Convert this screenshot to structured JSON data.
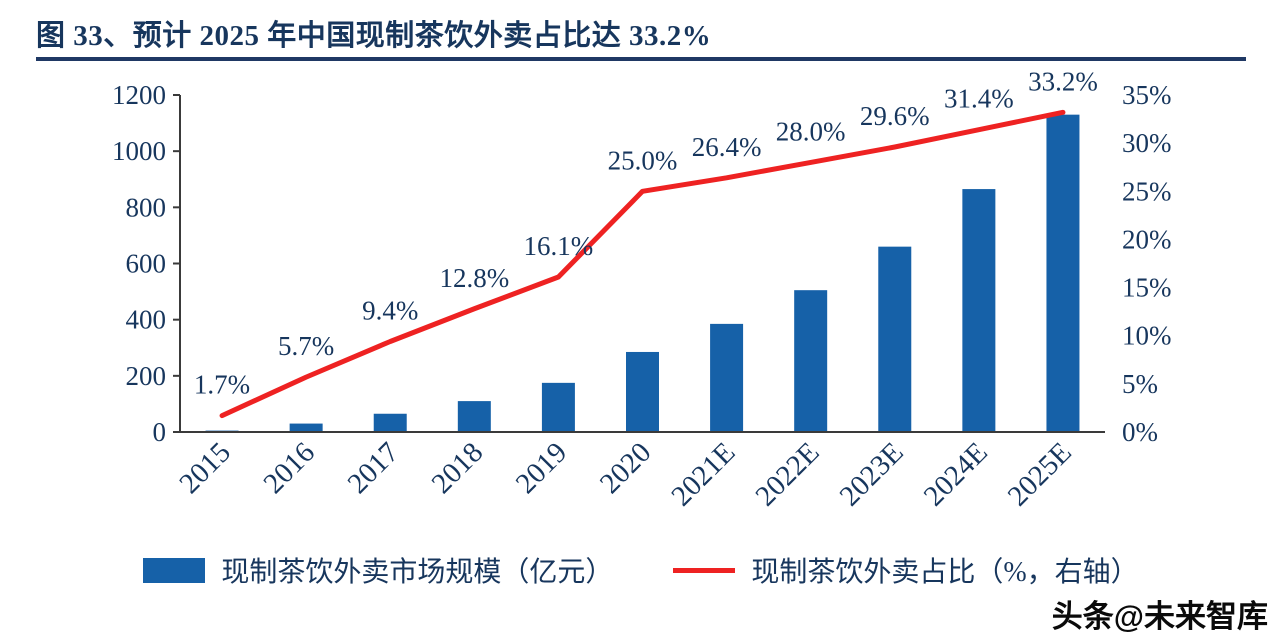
{
  "title": "图 33、预计 2025 年中国现制茶饮外卖占比达 33.2%",
  "watermark": "头条@未来智库",
  "colors": {
    "bar": "#1661A8",
    "line": "#EE2222",
    "axis_text": "#17365D",
    "title_text": "#17365D",
    "title_rule": "#1F3864"
  },
  "chart_data": {
    "type": "bar",
    "title": "图 33、预计 2025 年中国现制茶饮外卖占比达 33.2%",
    "categories": [
      "2015",
      "2016",
      "2017",
      "2018",
      "2019",
      "2020",
      "2021E",
      "2022E",
      "2023E",
      "2024E",
      "2025E"
    ],
    "series": [
      {
        "name": "现制茶饮外卖市场规模（亿元）",
        "type": "bar",
        "axis": "left",
        "values": [
          5,
          30,
          65,
          110,
          175,
          285,
          385,
          505,
          660,
          865,
          1130
        ]
      },
      {
        "name": "现制茶饮外卖占比（%，右轴）",
        "type": "line",
        "axis": "right",
        "values": [
          1.7,
          5.7,
          9.4,
          12.8,
          16.1,
          25.0,
          26.4,
          28.0,
          29.6,
          31.4,
          33.2
        ],
        "labels": [
          "1.7%",
          "5.7%",
          "9.4%",
          "12.8%",
          "16.1%",
          "25.0%",
          "26.4%",
          "28.0%",
          "29.6%",
          "31.4%",
          "33.2%"
        ]
      }
    ],
    "left_axis": {
      "min": 0,
      "max": 1200,
      "step": 200,
      "ticks": [
        "0",
        "200",
        "400",
        "600",
        "800",
        "1000",
        "1200"
      ]
    },
    "right_axis": {
      "min": 0,
      "max": 35,
      "step": 5,
      "ticks": [
        "0%",
        "5%",
        "10%",
        "15%",
        "20%",
        "25%",
        "30%",
        "35%"
      ]
    },
    "grid": false,
    "legend_position": "bottom",
    "legend": [
      {
        "label": "现制茶饮外卖市场规模（亿元）",
        "marker": "bar"
      },
      {
        "label": "现制茶饮外卖占比（%，右轴）",
        "marker": "line"
      }
    ]
  }
}
